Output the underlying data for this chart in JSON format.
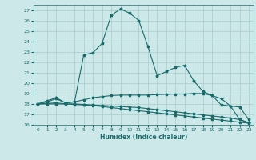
{
  "xlabel": "Humidex (Indice chaleur)",
  "background_color": "#cce8e8",
  "grid_color": "#aacccc",
  "line_color": "#1a6b6b",
  "xlim": [
    -0.5,
    23.5
  ],
  "ylim": [
    16,
    27.5
  ],
  "xticks": [
    0,
    1,
    2,
    3,
    4,
    5,
    6,
    7,
    8,
    9,
    10,
    11,
    12,
    13,
    14,
    15,
    16,
    17,
    18,
    19,
    20,
    21,
    22,
    23
  ],
  "yticks": [
    16,
    17,
    18,
    19,
    20,
    21,
    22,
    23,
    24,
    25,
    26,
    27
  ],
  "series": [
    {
      "x": [
        0,
        1,
        2,
        3,
        4,
        5,
        6,
        7,
        8,
        9,
        10,
        11,
        12,
        13,
        14,
        15,
        16,
        17,
        18,
        19,
        20,
        21,
        22,
        23
      ],
      "y": [
        18,
        18.3,
        18.6,
        18.1,
        18.2,
        22.7,
        22.9,
        23.8,
        26.5,
        27.1,
        26.7,
        26.0,
        23.5,
        20.7,
        21.1,
        21.5,
        21.7,
        20.2,
        19.2,
        18.8,
        17.9,
        17.8,
        16.5,
        16.2
      ]
    },
    {
      "x": [
        0,
        1,
        2,
        3,
        4,
        5,
        6,
        7,
        8,
        9,
        10,
        11,
        12,
        13,
        14,
        15,
        16,
        17,
        18,
        19,
        20,
        21,
        22,
        23
      ],
      "y": [
        18,
        18.2,
        18.5,
        18.1,
        18.2,
        18.4,
        18.6,
        18.7,
        18.8,
        18.85,
        18.85,
        18.85,
        18.85,
        18.9,
        18.92,
        18.95,
        18.95,
        19.0,
        19.0,
        18.8,
        18.5,
        17.8,
        17.7,
        16.5
      ]
    },
    {
      "x": [
        0,
        1,
        2,
        3,
        4,
        5,
        6,
        7,
        8,
        9,
        10,
        11,
        12,
        13,
        14,
        15,
        16,
        17,
        18,
        19,
        20,
        21,
        22,
        23
      ],
      "y": [
        18,
        18.05,
        18.1,
        18.0,
        18.0,
        17.95,
        17.9,
        17.85,
        17.8,
        17.75,
        17.7,
        17.65,
        17.55,
        17.45,
        17.35,
        17.25,
        17.15,
        17.05,
        16.95,
        16.85,
        16.75,
        16.65,
        16.5,
        16.2
      ]
    },
    {
      "x": [
        0,
        1,
        2,
        3,
        4,
        5,
        6,
        7,
        8,
        9,
        10,
        11,
        12,
        13,
        14,
        15,
        16,
        17,
        18,
        19,
        20,
        21,
        22,
        23
      ],
      "y": [
        18,
        18.0,
        18.0,
        18.0,
        17.95,
        17.9,
        17.85,
        17.75,
        17.65,
        17.55,
        17.45,
        17.35,
        17.25,
        17.15,
        17.05,
        16.95,
        16.85,
        16.75,
        16.65,
        16.55,
        16.45,
        16.35,
        16.25,
        16.15
      ]
    }
  ]
}
